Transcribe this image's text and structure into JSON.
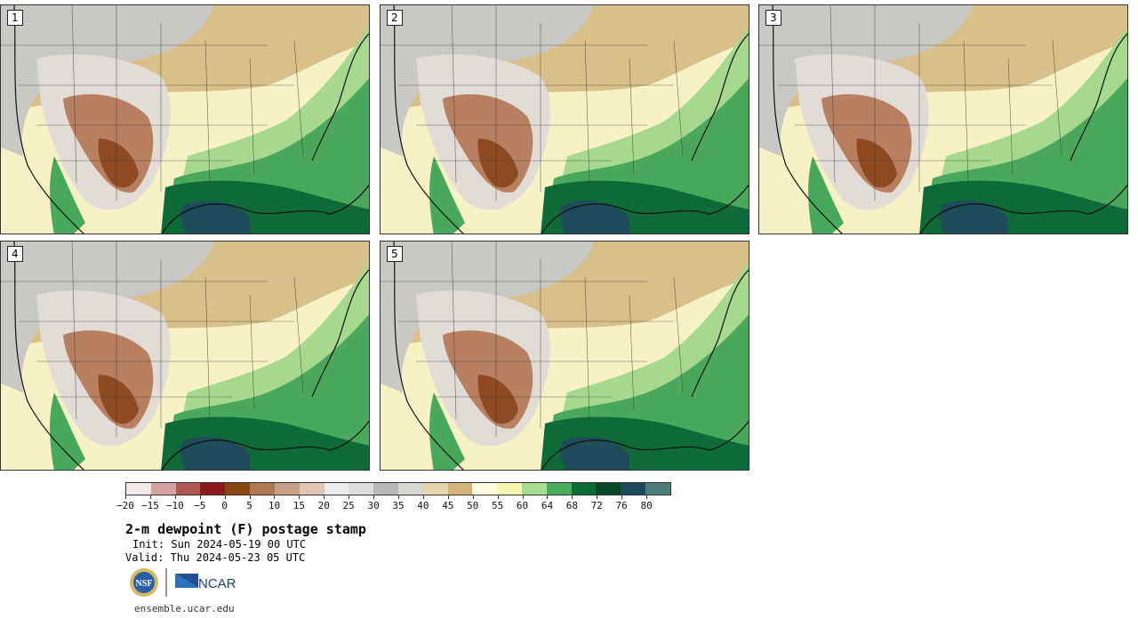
{
  "panels": [
    {
      "label": "1"
    },
    {
      "label": "2"
    },
    {
      "label": "3"
    },
    {
      "label": "4"
    },
    {
      "label": "5"
    }
  ],
  "colorbar": {
    "colors": [
      "#f4e8e8",
      "#d4a0a0",
      "#b05858",
      "#8c1a1a",
      "#8a4514",
      "#b07850",
      "#c8a088",
      "#e0c4b4",
      "#ececec",
      "#dcdcdc",
      "#b8b8b8",
      "#d8d8d0",
      "#e6d6ac",
      "#d2b478",
      "#fcfce0",
      "#f6f6b0",
      "#a8dc90",
      "#48ac5c",
      "#0c6c38",
      "#064828",
      "#1c4a5a",
      "#4c7c7c"
    ],
    "ticks": [
      "−20",
      "−15",
      "−10",
      "−5",
      "0",
      "5",
      "10",
      "15",
      "20",
      "25",
      "30",
      "35",
      "40",
      "45",
      "50",
      "55",
      "60",
      "64",
      "68",
      "72",
      "76",
      "80"
    ]
  },
  "title": "2-m dewpoint (F) postage stamp",
  "init": "Init: Sun 2024-05-19 00 UTC",
  "valid": "Valid: Thu 2024-05-23 05 UTC",
  "logos": {
    "nsf": "NSF",
    "ncar": "NCAR"
  },
  "site": "ensemble.ucar.edu"
}
